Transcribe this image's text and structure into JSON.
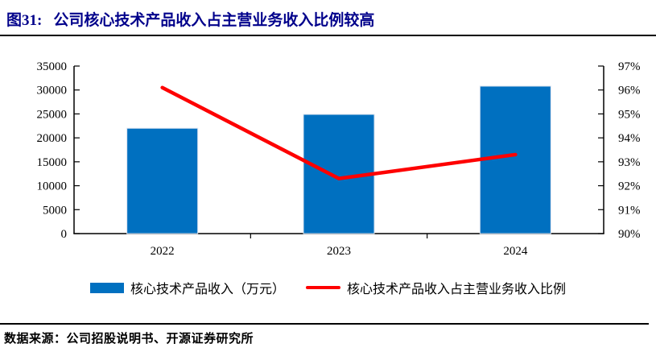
{
  "figure": {
    "label": "图31:",
    "title": "公司核心技术产品收入占主营业务收入比例较高",
    "source": "数据来源：公司招股说明书、开源证券研究所"
  },
  "legend": [
    {
      "swatch": "bar",
      "label": "核心技术产品收入（万元）",
      "color": "#0070C0"
    },
    {
      "swatch": "line",
      "label": "核心技术产品收入占主营业务收入比例",
      "color": "#FE0000"
    }
  ],
  "colors": {
    "title_text": "#00008B",
    "bar_fill": "#0070C0",
    "bar_edge": "#D9E2EF",
    "line_stroke": "#FE0000",
    "axis": "#000000",
    "rule": "#000000",
    "background": "#FFFFFF"
  },
  "chart_data": {
    "type": "bar",
    "title": "图31: 公司核心技术产品收入占主营业务收入比例较高",
    "categories": [
      "2022",
      "2023",
      "2024"
    ],
    "series": [
      {
        "name": "核心技术产品收入（万元）",
        "type": "bar",
        "axis": "left",
        "values": [
          22000,
          24900,
          30800
        ],
        "color": "#0070C0"
      },
      {
        "name": "核心技术产品收入占主营业务收入比例",
        "type": "line",
        "axis": "right",
        "values": [
          96.1,
          92.3,
          93.3
        ],
        "unit": "%",
        "color": "#FE0000"
      }
    ],
    "left_axis": {
      "min": 0,
      "max": 35000,
      "step": 5000,
      "tick_labels": [
        "0",
        "5000",
        "10000",
        "15000",
        "20000",
        "25000",
        "30000",
        "35000"
      ]
    },
    "right_axis": {
      "min": 90,
      "max": 97,
      "step": 1,
      "tick_labels": [
        "90%",
        "91%",
        "92%",
        "93%",
        "94%",
        "95%",
        "96%",
        "97%"
      ]
    },
    "grid": false,
    "legend_position": "bottom"
  }
}
